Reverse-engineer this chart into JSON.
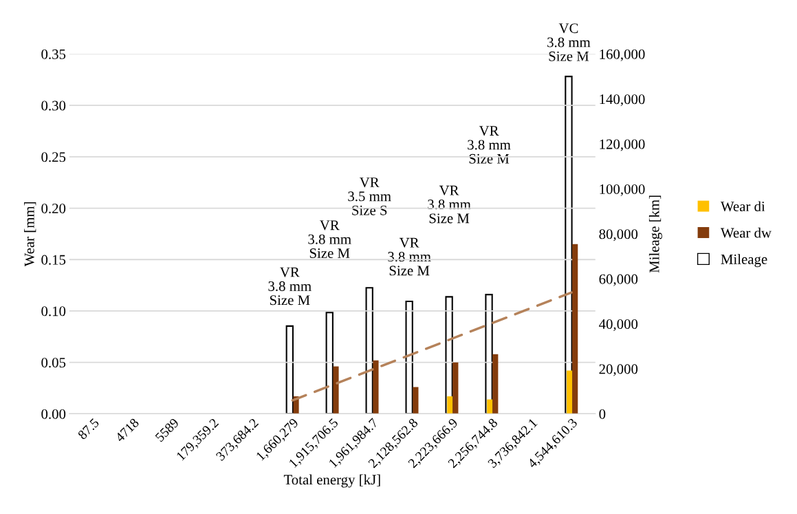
{
  "chart_data": {
    "type": "bar",
    "xlabel": "Total energy [kJ]",
    "ylabel": "Wear [mm]",
    "y2label": "Mileage [km]",
    "categories": [
      "87.5",
      "4718",
      "5589",
      "179,359.2",
      "373,684.2",
      "1,660,279",
      "1,915,706.5",
      "1,961,984.7",
      "2,128,562.8",
      "2,223,666.9",
      "2,256,744.8",
      "3,736,842.1",
      "4,544,610.3"
    ],
    "series": [
      {
        "name": "Wear di",
        "color": "#ffc000",
        "values": [
          null,
          null,
          null,
          null,
          null,
          null,
          null,
          null,
          null,
          0.017,
          0.014,
          null,
          0.042
        ]
      },
      {
        "name": "Wear dw",
        "color": "#843c0c",
        "values": [
          null,
          null,
          null,
          null,
          null,
          0.017,
          0.046,
          0.052,
          0.026,
          0.05,
          0.058,
          null,
          0.165
        ]
      },
      {
        "name": "Mileage",
        "color": "#ffffff",
        "axis": "y2",
        "values": [
          null,
          null,
          null,
          null,
          null,
          39000,
          45000,
          56000,
          50000,
          52000,
          53000,
          null,
          150000
        ]
      },
      {
        "type": "line",
        "color": "#b5825a",
        "line_style": "dashed",
        "x": [
          "1,660,279",
          "4,544,610.3"
        ],
        "values": [
          0.013,
          0.118
        ]
      }
    ],
    "ylim": [
      0,
      0.35
    ],
    "yticks": [
      {
        "value": 0,
        "label": "0.00"
      },
      {
        "value": 0.05,
        "label": "0.05"
      },
      {
        "value": 0.1,
        "label": "0.10"
      },
      {
        "value": 0.15,
        "label": "0.15"
      },
      {
        "value": 0.2,
        "label": "0.20"
      },
      {
        "value": 0.25,
        "label": "0.25"
      },
      {
        "value": 0.3,
        "label": "0.30"
      },
      {
        "value": 0.35,
        "label": "0.35"
      }
    ],
    "y2lim": [
      0,
      160000
    ],
    "y2ticks": [
      {
        "value": 0,
        "label": "0"
      },
      {
        "value": 20000,
        "label": "20,000"
      },
      {
        "value": 40000,
        "label": "40,000"
      },
      {
        "value": 60000,
        "label": "60,000"
      },
      {
        "value": 80000,
        "label": "80,000"
      },
      {
        "value": 100000,
        "label": "100,000"
      },
      {
        "value": 120000,
        "label": "120,000"
      },
      {
        "value": 140000,
        "label": "140,000"
      },
      {
        "value": 160000,
        "label": "160,000"
      }
    ],
    "grid": "y",
    "legend": "right",
    "annotations": [
      "VR\n3.8 mm\nSize M",
      "VR\n3.8 mm\nSize M",
      "VR\n3.5 mm\nSize S",
      "VR\n3.8 mm\nSize M",
      "VR\n3.8 mm\nSize M",
      "VR\n3.8 mm\nSize M",
      "VC\n3.8 mm\nSize M"
    ]
  }
}
